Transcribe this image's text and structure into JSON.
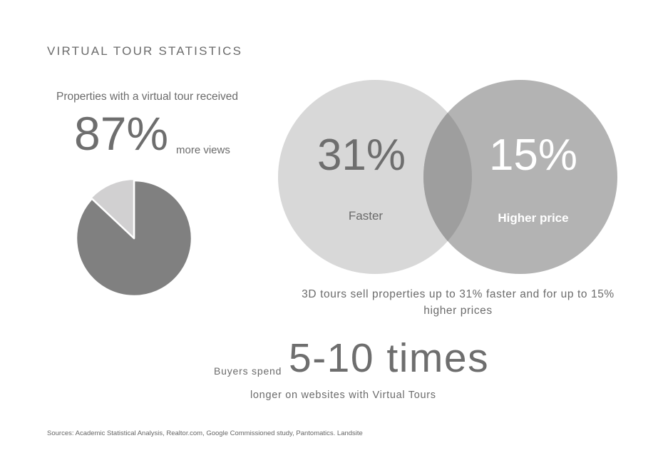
{
  "title": "VIRTUAL TOUR STATISTICS",
  "pie_section": {
    "caption": "Properties with a virtual tour received",
    "percent_text": "87%",
    "suffix": "more views"
  },
  "venn_section": {
    "caption": "3D tours sell properties up to 31% faster and for up to 15% higher prices"
  },
  "spend_section": {
    "lead": "Buyers spend",
    "big": "5-10 times",
    "sub": "longer on websites with Virtual Tours"
  },
  "sources": "Sources:  Academic Statistical Analysis, Realtor.com, Google Commissioned study, Pantomatics. Landsite",
  "colors": {
    "pie_major": "#808080",
    "pie_minor": "#d1d0d1",
    "circle_left": "#d8d8d8",
    "circle_right": "#b3b3b3",
    "overlap": "#9e9e9e"
  },
  "chart_data": [
    {
      "type": "pie",
      "slices": [
        {
          "label": "",
          "value": 87
        },
        {
          "label": "",
          "value": 13
        }
      ]
    },
    {
      "type": "venn",
      "sets": [
        {
          "label": "Faster",
          "value": 31,
          "value_text": "31%"
        },
        {
          "label": "Higher price",
          "value": 15,
          "value_text": "15%"
        }
      ]
    }
  ]
}
